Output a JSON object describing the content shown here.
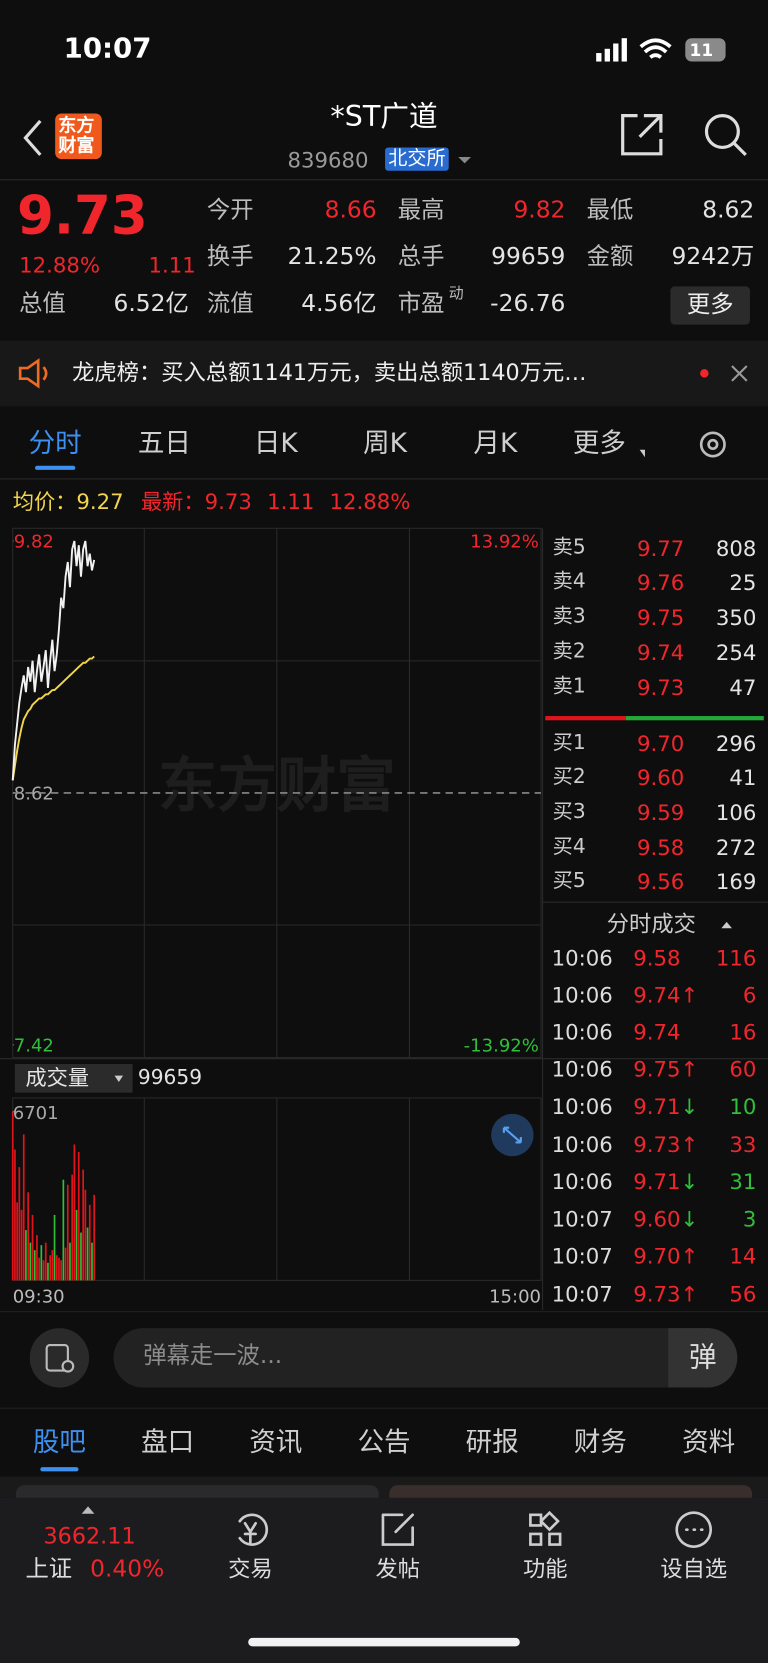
{
  "status": {
    "time": "10:07",
    "battery": "11"
  },
  "header": {
    "logo": [
      "东方",
      "财富"
    ],
    "title": "*ST广道",
    "code": "839680",
    "exchange": "北交所"
  },
  "quote": {
    "price": "9.73",
    "pct": "12.88%",
    "change": "1.11",
    "fields": [
      {
        "label": "今开",
        "value": "8.66"
      },
      {
        "label": "最高",
        "value": "9.82"
      },
      {
        "label": "最低",
        "value": "8.62"
      },
      {
        "label": "换手",
        "value": "21.25%"
      },
      {
        "label": "总手",
        "value": "99659"
      },
      {
        "label": "金额",
        "value": "9242万"
      },
      {
        "label": "总值",
        "value": "6.52亿"
      },
      {
        "label": "流值",
        "value": "4.56亿"
      },
      {
        "label": "市盈",
        "sup": "动",
        "value": "-26.76"
      }
    ],
    "more": "更多"
  },
  "banner": "龙虎榜：买入总额1141万元，卖出总额1140万元…",
  "tabs": [
    "分时",
    "五日",
    "日K",
    "周K",
    "月K",
    "更多"
  ],
  "info": {
    "avg_label": "均价：",
    "avg": "9.27",
    "last_label": "最新：",
    "last": "9.73",
    "change": "1.11",
    "pct": "12.88%"
  },
  "chart": {
    "ylim": [
      7.42,
      9.82
    ],
    "yticks": [
      9.82,
      8.62,
      7.42
    ],
    "pct_top": "13.92%",
    "pct_bottom": "-13.92%",
    "time_start": "09:30",
    "time_end": "15:00",
    "watermark": "东方财富",
    "price": [
      8.68,
      8.85,
      8.95,
      9.05,
      9.12,
      9.18,
      9.1,
      9.22,
      9.15,
      9.25,
      9.1,
      9.2,
      9.28,
      9.15,
      9.22,
      9.3,
      9.12,
      9.25,
      9.35,
      9.2,
      9.28,
      9.4,
      9.55,
      9.5,
      9.65,
      9.72,
      9.6,
      9.78,
      9.82,
      9.7,
      9.8,
      9.65,
      9.78,
      9.82,
      9.7,
      9.76,
      9.68,
      9.73
    ],
    "avg": [
      8.68,
      8.75,
      8.82,
      8.88,
      8.93,
      8.97,
      8.99,
      9.01,
      9.02,
      9.04,
      9.05,
      9.06,
      9.07,
      9.07,
      9.08,
      9.09,
      9.09,
      9.1,
      9.11,
      9.11,
      9.12,
      9.13,
      9.14,
      9.15,
      9.16,
      9.17,
      9.18,
      9.19,
      9.2,
      9.21,
      9.22,
      9.23,
      9.24,
      9.24,
      9.25,
      9.26,
      9.26,
      9.27
    ],
    "volume": {
      "label": "成交量",
      "total": "99659",
      "max": 6701,
      "values": [
        6701,
        5200,
        3100,
        4500,
        2800,
        5800,
        2000,
        3500,
        1500,
        2600,
        1200,
        1800,
        900,
        1400,
        800,
        1500,
        700,
        1000,
        1200,
        2600,
        1000,
        900,
        800,
        4000,
        1300,
        3800,
        1500,
        4200,
        5400,
        2800,
        5100,
        1900,
        4400,
        3600,
        2100,
        3000,
        1500,
        3400
      ]
    }
  },
  "orderbook": {
    "sells": [
      [
        "卖5",
        "9.77",
        "808"
      ],
      [
        "卖4",
        "9.76",
        "25"
      ],
      [
        "卖3",
        "9.75",
        "350"
      ],
      [
        "卖2",
        "9.74",
        "254"
      ],
      [
        "卖1",
        "9.73",
        "47"
      ]
    ],
    "buys": [
      [
        "买1",
        "9.70",
        "296"
      ],
      [
        "买2",
        "9.60",
        "41"
      ],
      [
        "买3",
        "9.59",
        "106"
      ],
      [
        "买4",
        "9.58",
        "272"
      ],
      [
        "买5",
        "9.56",
        "169"
      ]
    ]
  },
  "trades": {
    "title": "分时成交",
    "rows": [
      [
        "10:06",
        "9.58",
        "116",
        "buy"
      ],
      [
        "10:06",
        "9.74↑",
        "6",
        "buy"
      ],
      [
        "10:06",
        "9.74",
        "16",
        "buy"
      ],
      [
        "10:06",
        "9.75↑",
        "60",
        "buy"
      ],
      [
        "10:06",
        "9.71↓",
        "10",
        "sell"
      ],
      [
        "10:06",
        "9.73↑",
        "33",
        "buy"
      ],
      [
        "10:06",
        "9.71↓",
        "31",
        "sell"
      ],
      [
        "10:07",
        "9.60↓",
        "3",
        "sell"
      ],
      [
        "10:07",
        "9.70↑",
        "14",
        "buy"
      ],
      [
        "10:07",
        "9.73↑",
        "56",
        "buy"
      ]
    ]
  },
  "danmaku": {
    "placeholder": "弹幕走一波...",
    "button": "弹"
  },
  "bottom_tabs": [
    "股吧",
    "盘口",
    "资讯",
    "公告",
    "研报",
    "财务",
    "资料"
  ],
  "nav": {
    "index_value": "3662.11",
    "index_name": "上证",
    "index_pct": "0.40%",
    "items": [
      "交易",
      "发帖",
      "功能",
      "设自选"
    ]
  }
}
